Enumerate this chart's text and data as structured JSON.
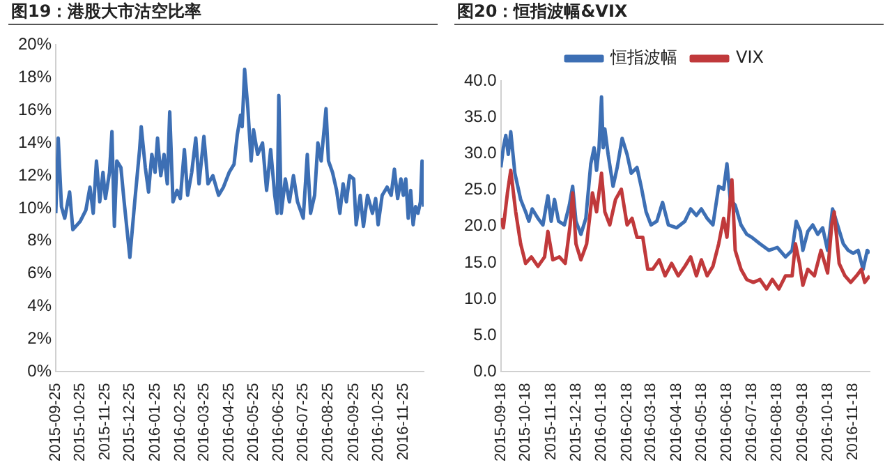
{
  "chart_data": [
    {
      "type": "line",
      "title": "图19：港股大市沽空比率",
      "marker": "none",
      "grid": false,
      "legend": false,
      "color": "#3d6fb4",
      "x": [
        "2015-09-25",
        "2015-09-28",
        "2015-10-02",
        "2015-10-06",
        "2015-10-12",
        "2015-10-16",
        "2015-10-25",
        "2015-11-01",
        "2015-11-06",
        "2015-11-10",
        "2015-11-14",
        "2015-11-18",
        "2015-11-22",
        "2015-11-25",
        "2015-11-30",
        "2015-12-03",
        "2015-12-06",
        "2015-12-09",
        "2015-12-14",
        "2015-12-18",
        "2015-12-25",
        "2015-12-31",
        "2016-01-06",
        "2016-01-08",
        "2016-01-13",
        "2016-01-17",
        "2016-01-21",
        "2016-01-25",
        "2016-01-28",
        "2016-02-01",
        "2016-02-05",
        "2016-02-09",
        "2016-02-12",
        "2016-02-16",
        "2016-02-21",
        "2016-02-25",
        "2016-03-01",
        "2016-03-05",
        "2016-03-10",
        "2016-03-15",
        "2016-03-19",
        "2016-03-25",
        "2016-03-30",
        "2016-04-05",
        "2016-04-12",
        "2016-04-18",
        "2016-04-25",
        "2016-05-01",
        "2016-05-05",
        "2016-05-09",
        "2016-05-11",
        "2016-05-14",
        "2016-05-18",
        "2016-05-22",
        "2016-05-25",
        "2016-05-30",
        "2016-06-05",
        "2016-06-10",
        "2016-06-15",
        "2016-06-20",
        "2016-06-23",
        "2016-06-25",
        "2016-06-28",
        "2016-07-03",
        "2016-07-08",
        "2016-07-13",
        "2016-07-18",
        "2016-07-25",
        "2016-07-30",
        "2016-08-03",
        "2016-08-08",
        "2016-08-12",
        "2016-08-16",
        "2016-08-20",
        "2016-08-22",
        "2016-08-25",
        "2016-08-30",
        "2016-09-04",
        "2016-09-08",
        "2016-09-12",
        "2016-09-16",
        "2016-09-20",
        "2016-09-25",
        "2016-09-28",
        "2016-10-03",
        "2016-10-07",
        "2016-10-12",
        "2016-10-18",
        "2016-10-22",
        "2016-10-25",
        "2016-10-30",
        "2016-11-05",
        "2016-11-10",
        "2016-11-14",
        "2016-11-18",
        "2016-11-22",
        "2016-11-25",
        "2016-11-28",
        "2016-12-01",
        "2016-12-04",
        "2016-12-07",
        "2016-12-10",
        "2016-12-13",
        "2016-12-16",
        "2016-12-18",
        "2016-12-20"
      ],
      "values": [
        9.7,
        14.3,
        10.1,
        9.4,
        11.0,
        8.7,
        9.2,
        9.9,
        11.3,
        9.7,
        12.9,
        10.4,
        12.2,
        10.6,
        12.2,
        14.7,
        8.9,
        12.9,
        12.5,
        10.4,
        7.0,
        10.4,
        13.6,
        15.0,
        12.5,
        11.0,
        13.3,
        12.2,
        14.3,
        12.0,
        13.3,
        11.5,
        15.9,
        10.4,
        11.1,
        10.6,
        13.6,
        10.8,
        12.2,
        14.3,
        11.5,
        14.4,
        11.5,
        12.0,
        10.8,
        11.3,
        12.2,
        12.7,
        14.5,
        15.7,
        15.0,
        18.5,
        16.1,
        12.9,
        14.8,
        13.3,
        14.0,
        11.1,
        13.6,
        10.8,
        9.7,
        16.9,
        9.7,
        11.8,
        10.4,
        12.0,
        10.4,
        9.4,
        13.3,
        9.7,
        10.8,
        14.0,
        12.9,
        15.0,
        16.1,
        12.9,
        12.2,
        11.1,
        9.7,
        11.5,
        10.4,
        12.0,
        11.8,
        9.0,
        10.8,
        8.9,
        10.8,
        9.7,
        10.6,
        9.0,
        10.8,
        11.3,
        10.8,
        12.4,
        10.6,
        11.8,
        10.8,
        11.8,
        9.4,
        11.1,
        9.0,
        10.1,
        9.7,
        10.4,
        12.9,
        10.1
      ],
      "xlim": [
        "2015-09-25",
        "2016-12-20"
      ],
      "xticks": [
        "2015-09-25",
        "2015-10-25",
        "2015-11-25",
        "2015-12-25",
        "2016-01-25",
        "2016-02-25",
        "2016-03-25",
        "2016-04-25",
        "2016-05-25",
        "2016-06-25",
        "2016-07-25",
        "2016-08-25",
        "2016-09-25",
        "2016-10-25",
        "2016-11-25"
      ],
      "ylim": [
        0,
        20
      ],
      "yticks": [
        {
          "value": 0,
          "label": "0%"
        },
        {
          "value": 2,
          "label": "2%"
        },
        {
          "value": 4,
          "label": "4%"
        },
        {
          "value": 6,
          "label": "6%"
        },
        {
          "value": 8,
          "label": "8%"
        },
        {
          "value": 10,
          "label": "10%"
        },
        {
          "value": 12,
          "label": "12%"
        },
        {
          "value": 14,
          "label": "14%"
        },
        {
          "value": 16,
          "label": "16%"
        },
        {
          "value": 18,
          "label": "18%"
        },
        {
          "value": 20,
          "label": "20%"
        }
      ]
    },
    {
      "type": "line",
      "title": "图20：恒指波幅&VIX",
      "marker": "none",
      "grid": false,
      "legend": "top",
      "series": [
        {
          "name": "恒指波幅",
          "color": "#3d6fb4",
          "x": [
            "2015-09-18",
            "2015-09-21",
            "2015-09-24",
            "2015-09-27",
            "2015-09-30",
            "2015-10-05",
            "2015-10-12",
            "2015-10-18",
            "2015-10-22",
            "2015-10-26",
            "2015-11-02",
            "2015-11-08",
            "2015-11-14",
            "2015-11-18",
            "2015-11-22",
            "2015-11-27",
            "2015-12-04",
            "2015-12-10",
            "2015-12-14",
            "2015-12-18",
            "2015-12-24",
            "2015-12-30",
            "2016-01-05",
            "2016-01-09",
            "2016-01-12",
            "2016-01-15",
            "2016-01-18",
            "2016-01-20",
            "2016-01-22",
            "2016-01-26",
            "2016-02-01",
            "2016-02-06",
            "2016-02-12",
            "2016-02-18",
            "2016-02-23",
            "2016-03-01",
            "2016-03-06",
            "2016-03-12",
            "2016-03-18",
            "2016-03-25",
            "2016-04-01",
            "2016-04-08",
            "2016-04-18",
            "2016-04-28",
            "2016-05-05",
            "2016-05-12",
            "2016-05-18",
            "2016-05-25",
            "2016-06-01",
            "2016-06-08",
            "2016-06-14",
            "2016-06-18",
            "2016-06-22",
            "2016-06-28",
            "2016-07-05",
            "2016-07-12",
            "2016-07-18",
            "2016-07-28",
            "2016-08-08",
            "2016-08-18",
            "2016-08-28",
            "2016-09-05",
            "2016-09-10",
            "2016-09-15",
            "2016-09-18",
            "2016-09-24",
            "2016-09-30",
            "2016-10-06",
            "2016-10-12",
            "2016-10-18",
            "2016-10-24",
            "2016-10-30",
            "2016-11-06",
            "2016-11-12",
            "2016-11-18",
            "2016-11-24",
            "2016-11-30",
            "2016-12-05",
            "2016-12-08"
          ],
          "values": [
            28.1,
            30.8,
            32.5,
            29.9,
            33.0,
            27.3,
            23.7,
            22.0,
            20.7,
            22.4,
            21.1,
            20.2,
            24.2,
            20.7,
            23.7,
            20.7,
            20.2,
            22.9,
            25.5,
            20.7,
            18.9,
            21.1,
            28.6,
            30.8,
            27.7,
            30.8,
            37.8,
            30.8,
            33.4,
            29.9,
            25.5,
            28.1,
            32.1,
            29.9,
            27.3,
            28.1,
            25.5,
            22.0,
            20.2,
            20.7,
            23.3,
            20.2,
            19.8,
            20.7,
            22.4,
            21.5,
            22.4,
            21.1,
            20.2,
            25.5,
            25.1,
            28.6,
            23.7,
            22.9,
            20.2,
            18.9,
            18.5,
            17.6,
            16.7,
            17.1,
            15.8,
            16.7,
            20.7,
            19.3,
            16.7,
            19.3,
            20.2,
            18.9,
            19.8,
            16.7,
            22.4,
            20.2,
            17.6,
            16.7,
            16.3,
            16.7,
            14.1,
            16.7,
            16.3
          ]
        },
        {
          "name": "VIX",
          "color": "#c0393b",
          "x": [
            "2015-09-18",
            "2015-09-21",
            "2015-09-26",
            "2015-09-30",
            "2015-10-06",
            "2015-10-12",
            "2015-10-18",
            "2015-10-25",
            "2015-11-02",
            "2015-11-10",
            "2015-11-14",
            "2015-11-20",
            "2015-11-28",
            "2015-12-05",
            "2015-12-11",
            "2015-12-14",
            "2015-12-18",
            "2015-12-24",
            "2015-12-31",
            "2016-01-07",
            "2016-01-12",
            "2016-01-18",
            "2016-01-22",
            "2016-01-28",
            "2016-02-04",
            "2016-02-11",
            "2016-02-18",
            "2016-02-24",
            "2016-03-01",
            "2016-03-08",
            "2016-03-14",
            "2016-03-20",
            "2016-03-28",
            "2016-04-04",
            "2016-04-12",
            "2016-04-20",
            "2016-04-28",
            "2016-05-05",
            "2016-05-12",
            "2016-05-18",
            "2016-05-25",
            "2016-06-01",
            "2016-06-08",
            "2016-06-14",
            "2016-06-18",
            "2016-06-24",
            "2016-06-28",
            "2016-07-05",
            "2016-07-12",
            "2016-07-20",
            "2016-07-28",
            "2016-08-05",
            "2016-08-12",
            "2016-08-20",
            "2016-08-28",
            "2016-09-05",
            "2016-09-09",
            "2016-09-14",
            "2016-09-18",
            "2016-09-24",
            "2016-10-02",
            "2016-10-10",
            "2016-10-18",
            "2016-10-23",
            "2016-10-26",
            "2016-11-01",
            "2016-11-08",
            "2016-11-15",
            "2016-11-22",
            "2016-11-28",
            "2016-12-02",
            "2016-12-08"
          ],
          "values": [
            21.1,
            19.8,
            24.6,
            27.7,
            22.0,
            17.6,
            14.9,
            15.8,
            14.5,
            15.8,
            19.3,
            15.4,
            15.8,
            14.9,
            20.2,
            24.6,
            17.6,
            15.4,
            17.6,
            24.6,
            22.0,
            27.3,
            22.0,
            20.2,
            23.7,
            25.1,
            20.2,
            21.1,
            18.5,
            18.5,
            14.1,
            14.1,
            15.4,
            13.2,
            14.9,
            13.2,
            14.5,
            15.8,
            13.2,
            15.4,
            13.2,
            14.5,
            17.6,
            21.1,
            18.5,
            26.4,
            16.7,
            14.1,
            12.7,
            12.3,
            12.7,
            11.4,
            12.7,
            11.4,
            13.2,
            13.2,
            17.6,
            14.9,
            11.9,
            14.1,
            13.2,
            16.7,
            13.6,
            20.2,
            22.0,
            14.9,
            13.2,
            12.3,
            13.2,
            14.1,
            12.3,
            13.2
          ]
        }
      ],
      "xlim": [
        "2015-09-18",
        "2016-12-08"
      ],
      "xticks": [
        "2015-09-18",
        "2015-10-18",
        "2015-11-18",
        "2015-12-18",
        "2016-01-18",
        "2016-02-18",
        "2016-03-18",
        "2016-04-18",
        "2016-05-18",
        "2016-06-18",
        "2016-07-18",
        "2016-08-18",
        "2016-09-18",
        "2016-10-18",
        "2016-11-18"
      ],
      "ylim": [
        0,
        40
      ],
      "yticks": [
        {
          "value": 0,
          "label": "0.0"
        },
        {
          "value": 5,
          "label": "5.0"
        },
        {
          "value": 10,
          "label": "10.0"
        },
        {
          "value": 15,
          "label": "15.0"
        },
        {
          "value": 20,
          "label": "20.0"
        },
        {
          "value": 25,
          "label": "25.0"
        },
        {
          "value": 30,
          "label": "30.0"
        },
        {
          "value": 35,
          "label": "35.0"
        },
        {
          "value": 40,
          "label": "40.0"
        }
      ]
    }
  ]
}
